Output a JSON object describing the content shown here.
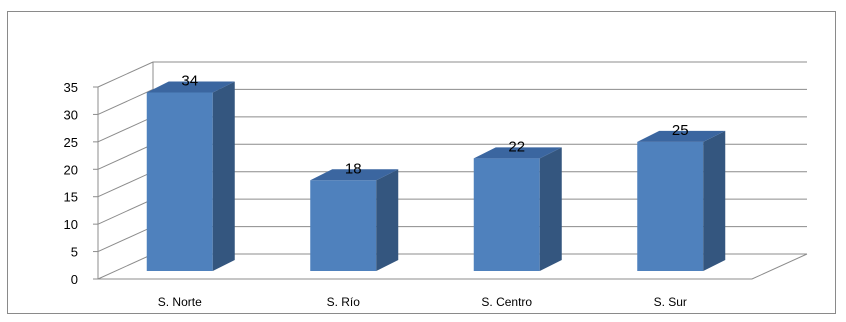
{
  "chart_data": {
    "type": "bar",
    "categories": [
      "S. Norte",
      "S. Río",
      "S. Centro",
      "S. Sur"
    ],
    "values": [
      34,
      18,
      22,
      25
    ],
    "data_labels": [
      "34",
      "18",
      "22",
      "25"
    ],
    "ylim": [
      0,
      35
    ],
    "yticks": [
      0,
      5,
      10,
      15,
      20,
      25,
      30,
      35
    ],
    "ytick_labels": [
      "0",
      "5",
      "10",
      "15",
      "20",
      "25",
      "30",
      "35"
    ],
    "grid": true,
    "three_d": true,
    "colors": {
      "bar_front": "#4f81bd",
      "bar_side": "#34567f",
      "bar_top": "#3b66a0",
      "grid": "#8c8c8c"
    }
  }
}
